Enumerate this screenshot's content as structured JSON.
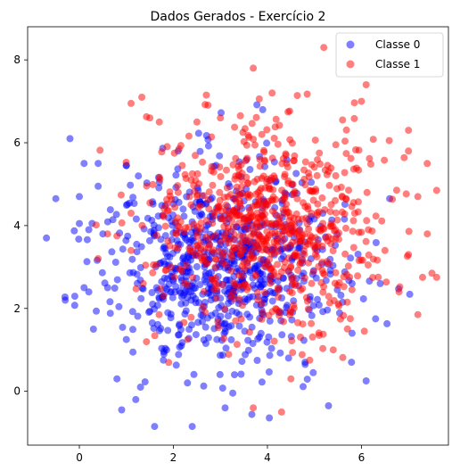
{
  "chart_data": {
    "type": "scatter",
    "title": "Dados Gerados - Exercício 2",
    "xlabel": "",
    "ylabel": "",
    "xlim": [
      -1.1,
      7.85
    ],
    "ylim": [
      -1.3,
      8.8
    ],
    "xticks": [
      0,
      2,
      4,
      6,
      8
    ],
    "yticks": [
      0,
      2,
      4,
      6,
      8
    ],
    "grid": false,
    "legend": "top-right",
    "series": [
      {
        "name": "Classe 0",
        "color": "#0000ff",
        "alpha": 0.5,
        "center": [
          3.0,
          3.0
        ],
        "std": [
          1.2,
          1.2
        ],
        "n": 750,
        "outliers": [
          [
            -0.7,
            3.7
          ],
          [
            -0.5,
            4.65
          ],
          [
            -0.3,
            2.2
          ],
          [
            0.0,
            4.05
          ],
          [
            0.0,
            4.7
          ],
          [
            0.1,
            5.5
          ],
          [
            0.4,
            5.5
          ],
          [
            0.4,
            4.95
          ],
          [
            0.5,
            3.8
          ],
          [
            0.3,
            1.5
          ],
          [
            0.2,
            2.4
          ],
          [
            -0.2,
            6.1
          ],
          [
            0.8,
            0.3
          ],
          [
            1.0,
            1.25
          ],
          [
            0.9,
            -0.45
          ],
          [
            1.2,
            -0.2
          ],
          [
            1.6,
            -0.85
          ],
          [
            2.4,
            -0.85
          ],
          [
            1.0,
            5.45
          ],
          [
            1.0,
            5.45
          ],
          [
            2.3,
            0.2
          ],
          [
            3.1,
            -0.4
          ],
          [
            3.3,
            0.4
          ],
          [
            4.8,
            0.7
          ],
          [
            5.3,
            -0.35
          ],
          [
            6.1,
            0.25
          ],
          [
            5.6,
            2.15
          ],
          [
            6.3,
            1.75
          ],
          [
            5.8,
            1.4
          ],
          [
            4.5,
            2.8
          ],
          [
            3.9,
            6.8
          ],
          [
            5.8,
            2.6
          ],
          [
            6.6,
            4.65
          ],
          [
            6.4,
            2.6
          ],
          [
            1.8,
            0.9
          ],
          [
            0.6,
            2.5
          ],
          [
            0.1,
            2.5
          ],
          [
            1.3,
            0.1
          ],
          [
            2.1,
            5.8
          ],
          [
            0.2,
            3.9
          ]
        ]
      },
      {
        "name": "Classe 1",
        "color": "#ff0000",
        "alpha": 0.5,
        "center": [
          4.0,
          4.0
        ],
        "std": [
          1.2,
          1.2
        ],
        "n": 750,
        "outliers": [
          [
            5.2,
            8.3
          ],
          [
            3.7,
            7.8
          ],
          [
            6.1,
            7.4
          ],
          [
            6.0,
            7.0
          ],
          [
            2.7,
            7.15
          ],
          [
            4.1,
            7.2
          ],
          [
            5.6,
            6.55
          ],
          [
            1.1,
            6.95
          ],
          [
            1.5,
            6.6
          ],
          [
            7.0,
            6.3
          ],
          [
            7.0,
            5.8
          ],
          [
            7.2,
            4.7
          ],
          [
            7.6,
            4.85
          ],
          [
            7.4,
            3.8
          ],
          [
            7.6,
            2.75
          ],
          [
            7.5,
            2.85
          ],
          [
            7.3,
            2.75
          ],
          [
            7.2,
            1.85
          ],
          [
            6.8,
            2.4
          ],
          [
            1.1,
            4.3
          ],
          [
            0.6,
            3.8
          ],
          [
            1.1,
            3.4
          ],
          [
            3.7,
            -0.4
          ],
          [
            4.3,
            -0.5
          ],
          [
            4.5,
            0.3
          ],
          [
            5.1,
            1.35
          ],
          [
            5.4,
            1.0
          ],
          [
            4.9,
            0.75
          ],
          [
            1.7,
            6.5
          ],
          [
            0.8,
            3.75
          ],
          [
            0.4,
            3.2
          ],
          [
            2.5,
            6.5
          ],
          [
            3.0,
            6.6
          ],
          [
            6.5,
            3.4
          ],
          [
            7.0,
            3.3
          ]
        ]
      }
    ]
  }
}
